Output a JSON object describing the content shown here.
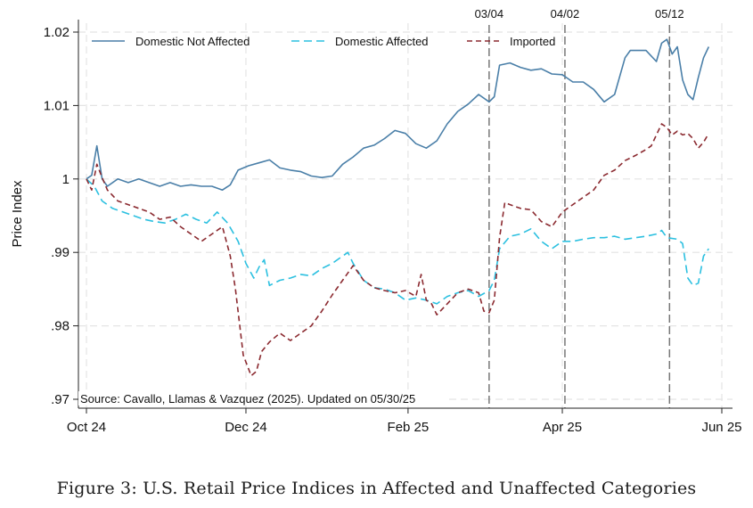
{
  "caption": "Figure 3: U.S. Retail Price Indices in Affected and Unaffected Categories",
  "colors": {
    "domestic_not_affected": "#4a7fa8",
    "domestic_affected": "#2cc0e0",
    "imported": "#8b2a30",
    "grid": "#e4e4e4",
    "event_line": "#777777"
  },
  "chart_data": {
    "type": "line",
    "title": "",
    "xlabel": "",
    "ylabel": "Price Index",
    "xlim": [
      0,
      239
    ],
    "ylim": [
      0.97,
      1.02
    ],
    "x_unit": "days since Oct 1, 2024",
    "x_ticks": [
      {
        "value": 0,
        "label": "Oct 24"
      },
      {
        "value": 61,
        "label": "Dec 24"
      },
      {
        "value": 123,
        "label": "Feb 25"
      },
      {
        "value": 182,
        "label": "Apr 25"
      },
      {
        "value": 243,
        "label": "Jun 25"
      }
    ],
    "y_ticks": [
      {
        "value": 0.97,
        "label": ".97"
      },
      {
        "value": 0.98,
        "label": ".98"
      },
      {
        "value": 0.99,
        "label": ".99"
      },
      {
        "value": 1.0,
        "label": "1"
      },
      {
        "value": 1.01,
        "label": "1.01"
      },
      {
        "value": 1.02,
        "label": "1.02"
      }
    ],
    "grid": true,
    "legend_position": "top",
    "annotations": [
      {
        "x": 154,
        "label": "03/04"
      },
      {
        "x": 183,
        "label": "04/02"
      },
      {
        "x": 223,
        "label": "05/12"
      }
    ],
    "source_note": "Source: Cavallo, Llamas & Vazquez (2025). Updated on 05/30/25",
    "series": [
      {
        "name": "Domestic Not Affected",
        "style": "solid",
        "x": [
          0,
          2,
          4,
          6,
          8,
          12,
          16,
          20,
          24,
          28,
          32,
          36,
          40,
          44,
          48,
          52,
          55,
          58,
          62,
          66,
          70,
          74,
          78,
          82,
          86,
          90,
          94,
          98,
          102,
          106,
          110,
          114,
          118,
          122,
          126,
          130,
          134,
          138,
          142,
          146,
          150,
          154,
          156,
          158,
          162,
          166,
          170,
          174,
          178,
          182,
          186,
          190,
          194,
          198,
          202,
          206,
          208,
          210,
          214,
          218,
          220,
          222,
          224,
          226,
          228,
          230,
          232,
          234,
          236,
          238
        ],
        "values": [
          1.0,
          1.0005,
          1.0045,
          1.0,
          0.999,
          1.0,
          0.9995,
          1.0,
          0.9995,
          0.999,
          0.9995,
          0.999,
          0.9992,
          0.999,
          0.999,
          0.9985,
          0.9992,
          1.0012,
          1.0018,
          1.0022,
          1.0026,
          1.0015,
          1.0012,
          1.001,
          1.0004,
          1.0002,
          1.0004,
          1.002,
          1.003,
          1.0042,
          1.0046,
          1.0055,
          1.0066,
          1.0062,
          1.0048,
          1.0042,
          1.0052,
          1.0075,
          1.0092,
          1.0102,
          1.0115,
          1.0105,
          1.0112,
          1.0155,
          1.0158,
          1.0152,
          1.0148,
          1.015,
          1.0143,
          1.0142,
          1.0132,
          1.0132,
          1.0122,
          1.0105,
          1.0115,
          1.0165,
          1.0175,
          1.0175,
          1.0175,
          1.016,
          1.0185,
          1.019,
          1.017,
          1.018,
          1.0135,
          1.0115,
          1.0108,
          1.0138,
          1.0165,
          1.018
        ]
      },
      {
        "name": "Domestic Affected",
        "style": "dashed",
        "x": [
          0,
          3,
          6,
          10,
          14,
          18,
          22,
          26,
          30,
          34,
          38,
          42,
          46,
          50,
          54,
          58,
          61,
          64,
          66,
          68,
          70,
          74,
          78,
          82,
          86,
          90,
          94,
          98,
          100,
          102,
          106,
          110,
          114,
          118,
          122,
          126,
          130,
          134,
          138,
          142,
          146,
          150,
          154,
          156,
          158,
          162,
          166,
          170,
          174,
          178,
          182,
          186,
          190,
          194,
          198,
          202,
          206,
          210,
          214,
          218,
          220,
          222,
          226,
          228,
          230,
          232,
          234,
          236,
          238
        ],
        "values": [
          1.0,
          0.999,
          0.997,
          0.996,
          0.9955,
          0.995,
          0.9945,
          0.9942,
          0.994,
          0.9945,
          0.9952,
          0.9945,
          0.994,
          0.9955,
          0.994,
          0.9915,
          0.9885,
          0.9865,
          0.988,
          0.989,
          0.9855,
          0.9862,
          0.9865,
          0.987,
          0.9868,
          0.9878,
          0.9885,
          0.9895,
          0.99,
          0.9885,
          0.9862,
          0.9852,
          0.985,
          0.9845,
          0.9835,
          0.9838,
          0.9835,
          0.983,
          0.984,
          0.9845,
          0.9848,
          0.984,
          0.9848,
          0.9862,
          0.9905,
          0.9922,
          0.9925,
          0.9932,
          0.9915,
          0.9905,
          0.9915,
          0.9915,
          0.9918,
          0.992,
          0.992,
          0.9922,
          0.9918,
          0.992,
          0.9922,
          0.9925,
          0.993,
          0.992,
          0.9918,
          0.9912,
          0.9865,
          0.9855,
          0.9858,
          0.9895,
          0.9905
        ]
      },
      {
        "name": "Imported",
        "style": "dashed",
        "x": [
          0,
          2,
          4,
          6,
          8,
          12,
          16,
          20,
          24,
          28,
          32,
          36,
          40,
          44,
          48,
          52,
          55,
          57,
          60,
          63,
          65,
          67,
          70,
          74,
          78,
          82,
          86,
          90,
          94,
          98,
          102,
          106,
          110,
          114,
          118,
          122,
          126,
          128,
          130,
          132,
          134,
          138,
          142,
          146,
          150,
          152,
          154,
          156,
          158,
          160,
          162,
          166,
          170,
          174,
          178,
          182,
          186,
          190,
          194,
          198,
          202,
          206,
          210,
          214,
          216,
          218,
          220,
          222,
          224,
          226,
          228,
          230,
          232,
          234,
          236,
          238
        ],
        "values": [
          1.0,
          0.9985,
          1.002,
          1.0002,
          0.9985,
          0.997,
          0.9965,
          0.996,
          0.9955,
          0.9945,
          0.9948,
          0.9935,
          0.9925,
          0.9915,
          0.9925,
          0.9935,
          0.9895,
          0.985,
          0.976,
          0.9732,
          0.9738,
          0.9765,
          0.9778,
          0.979,
          0.978,
          0.979,
          0.98,
          0.982,
          0.9842,
          0.9862,
          0.9882,
          0.9862,
          0.9852,
          0.9848,
          0.9845,
          0.9848,
          0.984,
          0.987,
          0.9835,
          0.983,
          0.9815,
          0.983,
          0.9845,
          0.985,
          0.9845,
          0.982,
          0.9818,
          0.9835,
          0.992,
          0.9968,
          0.9965,
          0.996,
          0.9958,
          0.9942,
          0.9935,
          0.9955,
          0.9965,
          0.9975,
          0.9985,
          1.0005,
          1.0012,
          1.0025,
          1.0032,
          1.004,
          1.0045,
          1.006,
          1.0075,
          1.007,
          1.006,
          1.0065,
          1.006,
          1.0062,
          1.0055,
          1.0042,
          1.005,
          1.0062
        ]
      }
    ]
  }
}
